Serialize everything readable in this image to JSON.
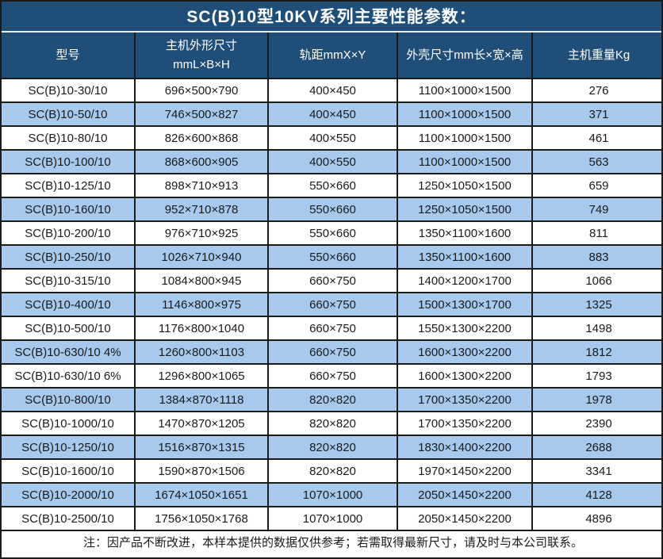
{
  "title": "SC(B)10型10KV系列主要性能参数：",
  "table": {
    "columns": [
      {
        "id": "model",
        "label": "型号"
      },
      {
        "id": "unit-dimensions",
        "label": "主机外形尺寸",
        "label2": "mmL×B×H"
      },
      {
        "id": "track-gauge",
        "label": "轨距mmX×Y"
      },
      {
        "id": "shell-dimensions",
        "label": "外壳尺寸mm长×宽×高"
      },
      {
        "id": "unit-weight",
        "label": "主机重量Kg"
      }
    ],
    "rows": [
      [
        "SC(B)10-30/10",
        "696×500×790",
        "400×450",
        "1100×1000×1500",
        "276"
      ],
      [
        "SC(B)10-50/10",
        "746×500×827",
        "400×450",
        "1100×1000×1500",
        "371"
      ],
      [
        "SC(B)10-80/10",
        "826×600×868",
        "400×550",
        "1100×1000×1500",
        "461"
      ],
      [
        "SC(B)10-100/10",
        "868×600×905",
        "400×550",
        "1100×1000×1500",
        "563"
      ],
      [
        "SC(B)10-125/10",
        "898×710×913",
        "550×660",
        "1250×1050×1500",
        "659"
      ],
      [
        "SC(B)10-160/10",
        "952×710×878",
        "550×660",
        "1250×1050×1500",
        "749"
      ],
      [
        "SC(B)10-200/10",
        "976×710×925",
        "550×660",
        "1350×1100×1600",
        "811"
      ],
      [
        "SC(B)10-250/10",
        "1026×710×940",
        "550×660",
        "1350×1100×1600",
        "883"
      ],
      [
        "SC(B)10-315/10",
        "1084×800×945",
        "660×750",
        "1400×1200×1700",
        "1066"
      ],
      [
        "SC(B)10-400/10",
        "1146×800×975",
        "660×750",
        "1500×1300×1700",
        "1325"
      ],
      [
        "SC(B)10-500/10",
        "1176×800×1040",
        "660×750",
        "1550×1300×2200",
        "1498"
      ],
      [
        "SC(B)10-630/10 4%",
        "1260×800×1103",
        "660×750",
        "1600×1300×2200",
        "1812"
      ],
      [
        "SC(B)10-630/10 6%",
        "1296×800×1065",
        "660×750",
        "1600×1300×2200",
        "1793"
      ],
      [
        "SC(B)10-800/10",
        "1384×870×1118",
        "820×820",
        "1700×1350×2200",
        "1978"
      ],
      [
        "SC(B)10-1000/10",
        "1470×870×1205",
        "820×820",
        "1700×1350×2200",
        "2390"
      ],
      [
        "SC(B)10-1250/10",
        "1516×870×1315",
        "820×820",
        "1830×1400×2200",
        "2688"
      ],
      [
        "SC(B)10-1600/10",
        "1590×870×1506",
        "820×820",
        "1970×1450×2200",
        "3341"
      ],
      [
        "SC(B)10-2000/10",
        "1674×1050×1651",
        "1070×1000",
        "2050×1450×2200",
        "4128"
      ],
      [
        "SC(B)10-2500/10",
        "1756×1050×1768",
        "1070×1000",
        "2050×1450×2200",
        "4896"
      ]
    ]
  },
  "note": "注：因产品不断改进，本样本提供的数据仅供参考；若需取得最新尺寸，请及时与本公司联系。",
  "colors": {
    "header_bg": "#1f4e79",
    "header_text": "#ffffff",
    "row_alt_bg": "#a6c9ed",
    "row_bg": "#ffffff",
    "grid_line": "#1b1b1b",
    "body_text": "#1a1a1a",
    "title_divider": "#ededed"
  }
}
